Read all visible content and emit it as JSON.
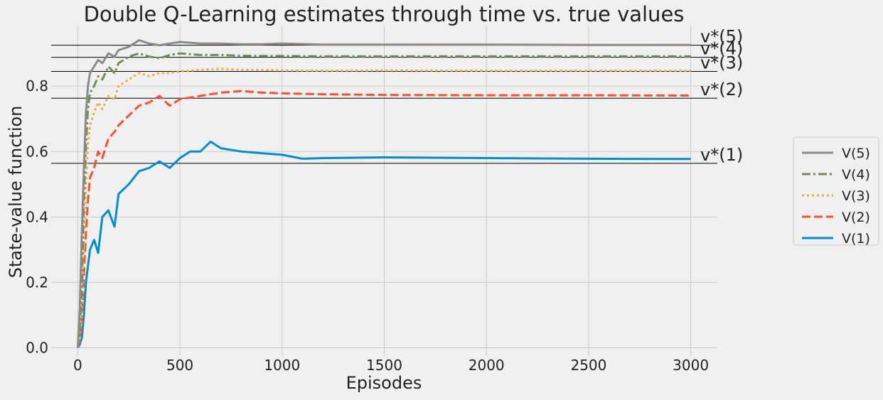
{
  "chart_data": {
    "type": "line",
    "title": "Double Q-Learning estimates through time vs. true values",
    "xlabel": "Episodes",
    "ylabel": "State-value function",
    "xlim": [
      -130,
      3130
    ],
    "ylim": [
      -0.025,
      0.985
    ],
    "x_ticks": [
      0,
      500,
      1000,
      1500,
      2000,
      2500,
      3000
    ],
    "y_ticks": [
      0.0,
      0.2,
      0.4,
      0.6,
      0.8
    ],
    "grid": true,
    "legend_position": "right",
    "true_values": [
      {
        "label": "v*(5)",
        "value": 0.925
      },
      {
        "label": "v*(4)",
        "value": 0.888
      },
      {
        "label": "v*(3)",
        "value": 0.845
      },
      {
        "label": "v*(2)",
        "value": 0.763
      },
      {
        "label": "v*(1)",
        "value": 0.564
      }
    ],
    "series": [
      {
        "name": "V(5)",
        "color": "#8b8b8b",
        "dash": "solid",
        "x": [
          0,
          10,
          20,
          30,
          40,
          50,
          60,
          80,
          100,
          120,
          150,
          180,
          200,
          250,
          300,
          350,
          400,
          450,
          500,
          600,
          700,
          800,
          900,
          1000,
          1200,
          1500,
          2000,
          2500,
          3000
        ],
        "y": [
          0.0,
          0.12,
          0.35,
          0.55,
          0.72,
          0.8,
          0.84,
          0.86,
          0.88,
          0.87,
          0.9,
          0.89,
          0.91,
          0.92,
          0.94,
          0.93,
          0.925,
          0.93,
          0.935,
          0.93,
          0.93,
          0.928,
          0.928,
          0.93,
          0.927,
          0.927,
          0.927,
          0.926,
          0.926
        ]
      },
      {
        "name": "V(4)",
        "color": "#6d904f",
        "dash": "dashdot",
        "x": [
          0,
          10,
          20,
          30,
          40,
          50,
          60,
          80,
          100,
          120,
          150,
          180,
          200,
          250,
          300,
          350,
          400,
          450,
          500,
          600,
          700,
          800,
          900,
          1000,
          1200,
          1500,
          2000,
          2500,
          3000
        ],
        "y": [
          0.0,
          0.05,
          0.2,
          0.45,
          0.62,
          0.73,
          0.78,
          0.8,
          0.83,
          0.82,
          0.86,
          0.84,
          0.87,
          0.89,
          0.9,
          0.89,
          0.885,
          0.895,
          0.9,
          0.895,
          0.895,
          0.893,
          0.892,
          0.892,
          0.891,
          0.891,
          0.891,
          0.891,
          0.891
        ]
      },
      {
        "name": "V(3)",
        "color": "#e5ae38",
        "dash": "dotted",
        "x": [
          0,
          10,
          20,
          30,
          40,
          50,
          60,
          80,
          100,
          120,
          150,
          180,
          200,
          250,
          300,
          350,
          400,
          450,
          500,
          600,
          700,
          800,
          900,
          1000,
          1200,
          1500,
          2000,
          2500,
          3000
        ],
        "y": [
          0.0,
          0.03,
          0.1,
          0.3,
          0.5,
          0.62,
          0.68,
          0.72,
          0.75,
          0.73,
          0.77,
          0.76,
          0.8,
          0.82,
          0.84,
          0.83,
          0.84,
          0.84,
          0.845,
          0.85,
          0.853,
          0.85,
          0.85,
          0.848,
          0.847,
          0.848,
          0.847,
          0.847,
          0.847
        ]
      },
      {
        "name": "V(2)",
        "color": "#fc4f30",
        "dash": "dashed",
        "x": [
          0,
          10,
          20,
          30,
          40,
          50,
          60,
          80,
          100,
          120,
          150,
          180,
          200,
          250,
          300,
          350,
          400,
          450,
          500,
          600,
          700,
          800,
          900,
          1000,
          1200,
          1500,
          2000,
          2500,
          3000
        ],
        "y": [
          0.0,
          0.02,
          0.08,
          0.22,
          0.35,
          0.45,
          0.52,
          0.55,
          0.6,
          0.58,
          0.64,
          0.66,
          0.68,
          0.71,
          0.74,
          0.75,
          0.77,
          0.74,
          0.76,
          0.77,
          0.78,
          0.785,
          0.78,
          0.778,
          0.775,
          0.773,
          0.772,
          0.772,
          0.771
        ]
      },
      {
        "name": "V(1)",
        "color": "#008fd5",
        "dash": "solid",
        "x": [
          0,
          10,
          20,
          30,
          40,
          50,
          60,
          80,
          100,
          120,
          150,
          180,
          200,
          250,
          300,
          350,
          400,
          450,
          500,
          550,
          600,
          650,
          700,
          800,
          900,
          1000,
          1100,
          1200,
          1500,
          2000,
          2500,
          3000
        ],
        "y": [
          0.0,
          0.01,
          0.03,
          0.1,
          0.2,
          0.25,
          0.3,
          0.33,
          0.29,
          0.4,
          0.42,
          0.37,
          0.47,
          0.5,
          0.54,
          0.55,
          0.57,
          0.55,
          0.58,
          0.6,
          0.6,
          0.63,
          0.61,
          0.6,
          0.595,
          0.59,
          0.578,
          0.58,
          0.582,
          0.58,
          0.578,
          0.577
        ]
      }
    ]
  }
}
